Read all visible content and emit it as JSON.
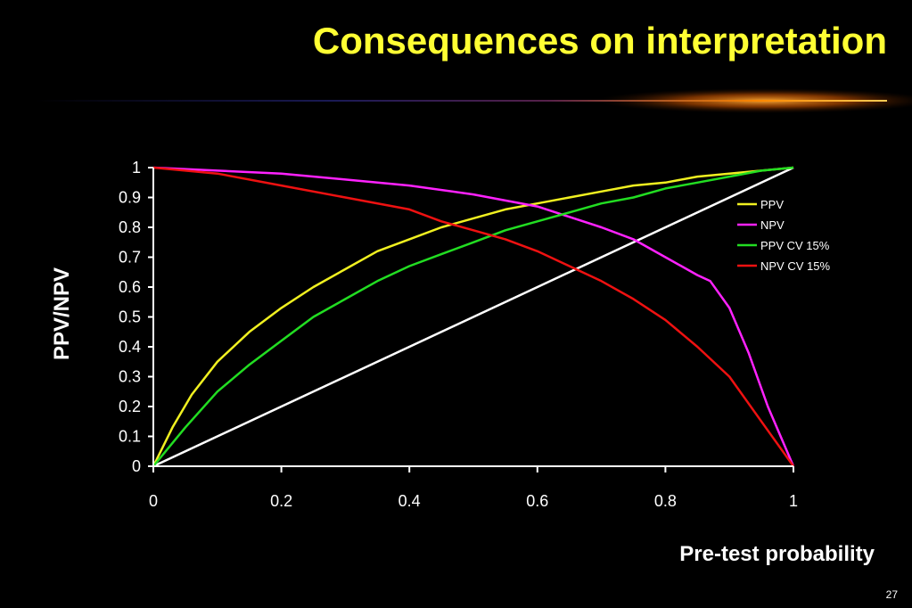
{
  "slide": {
    "title": "Consequences on interpretation",
    "page_number": "27"
  },
  "colors": {
    "title": "#ffff33",
    "background": "#000000",
    "axis": "#ffffff"
  },
  "chart_data": {
    "type": "line",
    "title": "",
    "xlabel": "Pre-test probability",
    "ylabel": "PPV/NPV",
    "xlim": [
      0,
      1
    ],
    "ylim": [
      0,
      1
    ],
    "x_ticks": [
      "0",
      "0.2",
      "0.4",
      "0.6",
      "0.8",
      "1"
    ],
    "y_ticks": [
      "0",
      "0.1",
      "0.2",
      "0.3",
      "0.4",
      "0.5",
      "0.6",
      "0.7",
      "0.8",
      "0.9",
      "1"
    ],
    "grid": false,
    "legend_position": "right",
    "reference_line": {
      "color": "#ffffff",
      "x": [
        0,
        1
      ],
      "y": [
        0,
        1
      ]
    },
    "series": [
      {
        "name": "PPV",
        "color": "#f0f020",
        "x": [
          0,
          0.03,
          0.06,
          0.1,
          0.15,
          0.2,
          0.25,
          0.3,
          0.35,
          0.4,
          0.45,
          0.5,
          0.55,
          0.6,
          0.65,
          0.7,
          0.75,
          0.8,
          0.85,
          0.9,
          0.95,
          1
        ],
        "y": [
          0,
          0.13,
          0.24,
          0.35,
          0.45,
          0.53,
          0.6,
          0.66,
          0.72,
          0.76,
          0.8,
          0.83,
          0.86,
          0.88,
          0.9,
          0.92,
          0.94,
          0.95,
          0.97,
          0.98,
          0.99,
          1
        ]
      },
      {
        "name": "NPV",
        "color": "#ff22ff",
        "x": [
          0,
          0.1,
          0.2,
          0.3,
          0.4,
          0.5,
          0.6,
          0.7,
          0.75,
          0.8,
          0.85,
          0.87,
          0.9,
          0.93,
          0.96,
          1
        ],
        "y": [
          1,
          0.99,
          0.98,
          0.96,
          0.94,
          0.91,
          0.87,
          0.8,
          0.76,
          0.7,
          0.64,
          0.62,
          0.53,
          0.38,
          0.2,
          0
        ]
      },
      {
        "name": "PPV CV 15%",
        "color": "#22dd22",
        "x": [
          0,
          0.05,
          0.1,
          0.15,
          0.2,
          0.25,
          0.3,
          0.35,
          0.4,
          0.45,
          0.5,
          0.55,
          0.6,
          0.65,
          0.7,
          0.75,
          0.8,
          0.85,
          0.9,
          0.95,
          1
        ],
        "y": [
          0,
          0.13,
          0.25,
          0.34,
          0.42,
          0.5,
          0.56,
          0.62,
          0.67,
          0.71,
          0.75,
          0.79,
          0.82,
          0.85,
          0.88,
          0.9,
          0.93,
          0.95,
          0.97,
          0.99,
          1
        ]
      },
      {
        "name": "NPV CV 15%",
        "color": "#ee1111",
        "x": [
          0,
          0.1,
          0.2,
          0.3,
          0.4,
          0.45,
          0.5,
          0.55,
          0.6,
          0.65,
          0.7,
          0.75,
          0.8,
          0.85,
          0.9,
          0.95,
          1
        ],
        "y": [
          1,
          0.98,
          0.94,
          0.9,
          0.86,
          0.82,
          0.79,
          0.76,
          0.72,
          0.67,
          0.62,
          0.56,
          0.49,
          0.4,
          0.3,
          0.15,
          0
        ]
      }
    ]
  }
}
